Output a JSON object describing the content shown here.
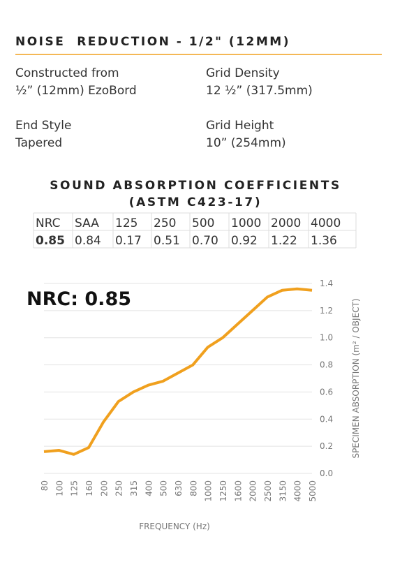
{
  "header": {
    "title": "NOISE  REDUCTION - 1/2\" (12MM)"
  },
  "specs": [
    {
      "label": "Constructed from",
      "value": "½” (12mm) EzoBord"
    },
    {
      "label": "Grid Density",
      "value": "12 ½” (317.5mm)"
    },
    {
      "label": "End Style",
      "value": "Tapered"
    },
    {
      "label": "Grid Height",
      "value": "10” (254mm)"
    }
  ],
  "table": {
    "title": "SOUND ABSORPTION COEFFICIENTS",
    "subtitle": "(ASTM C423-17)",
    "rows": [
      [
        "NRC",
        "SAA",
        "125",
        "250",
        "500",
        "1000",
        "2000",
        "4000"
      ],
      [
        "0.85",
        "0.84",
        "0.17",
        "0.51",
        "0.70",
        "0.92",
        "1.22",
        "1.36"
      ]
    ]
  },
  "chart_data": {
    "type": "line",
    "annotation": "NRC: 0.85",
    "x_label": "FREQUENCY (Hz)",
    "y_label": "SPECIMEN ABSORPTION (m² / OBJECT)",
    "categories": [
      "80",
      "100",
      "125",
      "160",
      "200",
      "250",
      "315",
      "400",
      "500",
      "630",
      "800",
      "1000",
      "1250",
      "1600",
      "2000",
      "2500",
      "3150",
      "4000",
      "5000"
    ],
    "values": [
      0.16,
      0.17,
      0.14,
      0.19,
      0.38,
      0.53,
      0.6,
      0.65,
      0.68,
      0.74,
      0.8,
      0.93,
      1.0,
      1.1,
      1.2,
      1.3,
      1.35,
      1.36,
      1.35
    ],
    "color": "#f0a01e",
    "ylim": [
      0,
      1.4
    ],
    "yticks": [
      {
        "value": 0,
        "label": "0.0"
      },
      0.2,
      0.4,
      0.6,
      0.8,
      {
        "value": 1,
        "label": "1.0"
      },
      1.2,
      1.4
    ],
    "grid": true
  }
}
